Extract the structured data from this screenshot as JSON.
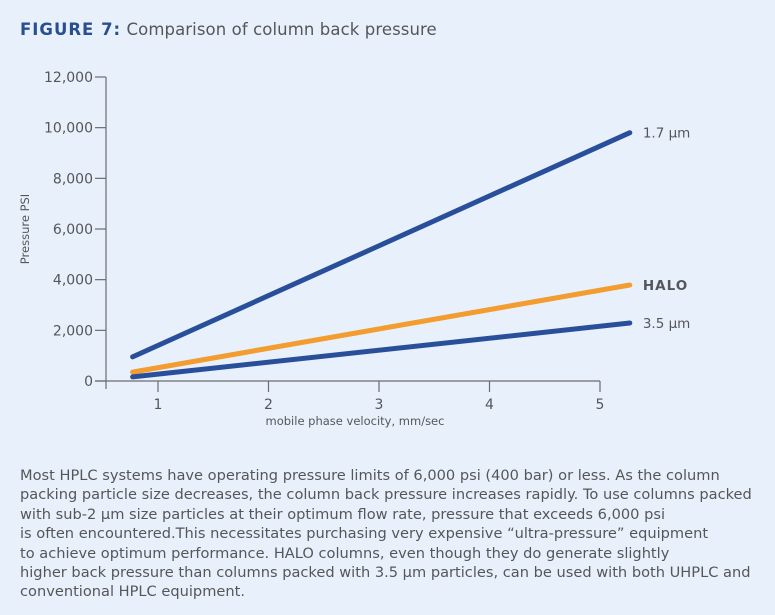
{
  "header": {
    "figure_label": "FIGURE 7:",
    "figure_title": "Comparison of column back pressure"
  },
  "chart_data": {
    "type": "line",
    "title": "Comparison of column back pressure",
    "xlabel": "mobile phase velocity, mm/sec",
    "ylabel": "Pressure PSI",
    "xlim": [
      0.55,
      5.3
    ],
    "ylim": [
      0,
      12000
    ],
    "xticks": [
      1,
      2,
      3,
      4,
      5
    ],
    "xtick_labels": [
      "1",
      "2",
      "3",
      "4",
      "5"
    ],
    "yticks": [
      0,
      2000,
      4000,
      6000,
      8000,
      10000,
      12000
    ],
    "ytick_labels": [
      "0",
      "2,000",
      "4,000",
      "6,000",
      "8,000",
      "10,000",
      "12,000"
    ],
    "grid": false,
    "legend": "inline-right",
    "series": [
      {
        "name": "1.7 µm",
        "label_bold": false,
        "color": "#2a4f9a",
        "x": [
          0.77,
          5.27
        ],
        "y": [
          950,
          9800
        ]
      },
      {
        "name": "HALO",
        "label_bold": true,
        "color": "#f39c2f",
        "x": [
          0.77,
          5.27
        ],
        "y": [
          350,
          3790
        ]
      },
      {
        "name": "3.5 µm",
        "label_bold": false,
        "color": "#2a4f9a",
        "x": [
          0.77,
          5.27
        ],
        "y": [
          160,
          2290
        ]
      }
    ]
  },
  "paragraph": {
    "lines": [
      "Most HPLC systems have operating pressure limits of 6,000 psi (400 bar) or less. As the column",
      "packing particle size decreases, the column back pressure increases rapidly. To use columns packed",
      "with sub-2 µm size particles at their optimum flow rate, pressure that exceeds 6,000 psi",
      "is often encountered.This necessitates purchasing very expensive “ultra-pressure” equipment",
      "to achieve optimum performance. HALO columns, even though they do generate slightly",
      "higher back pressure than columns packed with 3.5 µm particles, can be used with both UHPLC and",
      "conventional HPLC equipment."
    ]
  }
}
